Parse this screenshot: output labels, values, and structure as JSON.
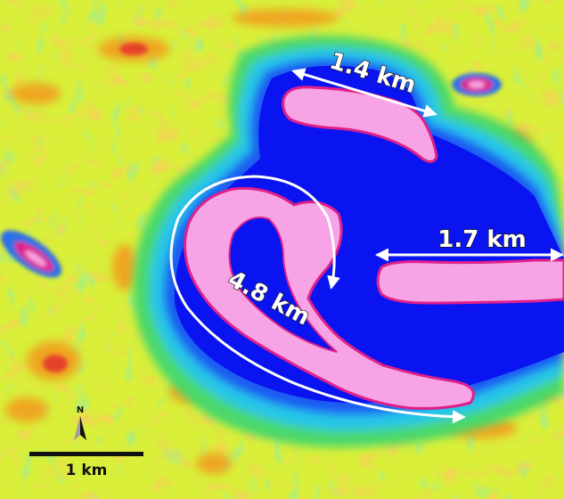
{
  "measurements": {
    "top": "1.4 km",
    "right": "1.7 km",
    "arc": "4.8 km"
  },
  "scale_bar": {
    "label": "1 km"
  },
  "north_arrow": {
    "label": "N"
  },
  "colors": {
    "background": "#d9ef3a",
    "mid": "#49d86a",
    "cyan": "#28c6e8",
    "low": "#0a14f0",
    "anomaly": "#f6a4e6",
    "anomaly_edge": "#e0208a",
    "high": "#f5a020",
    "annotation": "#ffffff"
  }
}
